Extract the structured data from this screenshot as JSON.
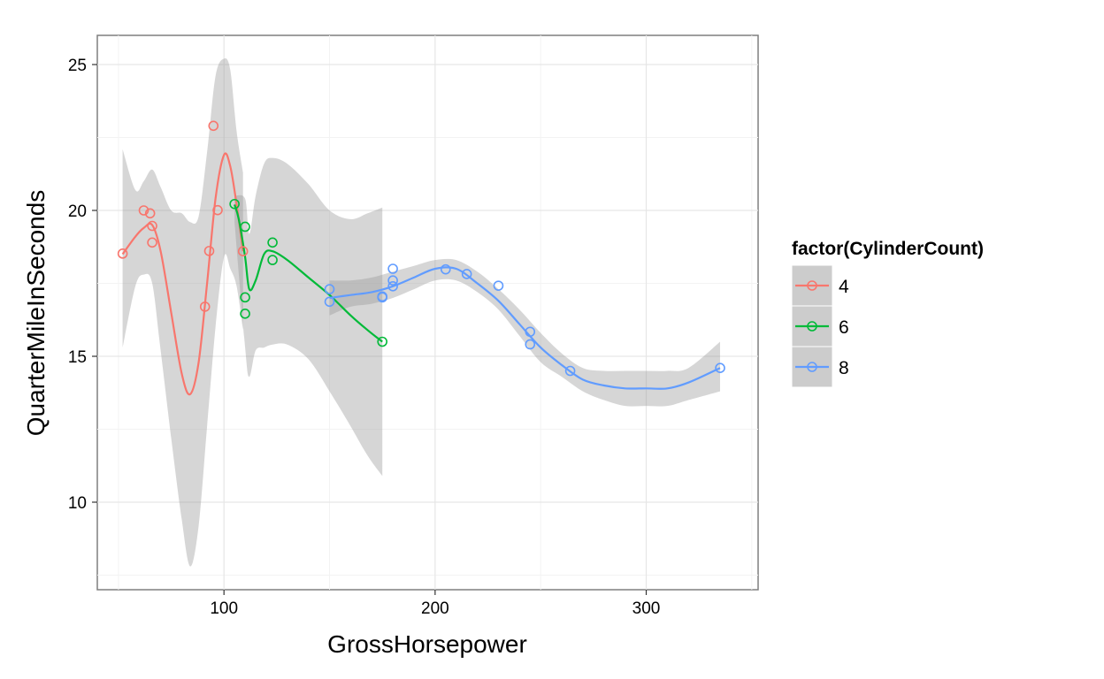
{
  "chart_data": {
    "type": "scatter",
    "xlabel": "GrossHorsepower",
    "ylabel": "QuarterMileInSeconds",
    "xlim": [
      40,
      353
    ],
    "ylim": [
      7,
      26
    ],
    "x_ticks": [
      100,
      200,
      300
    ],
    "y_ticks": [
      10,
      15,
      20,
      25
    ],
    "grid": true,
    "smoother": "loess with confidence band",
    "legend": {
      "title": "factor(CylinderCount)",
      "position": "right"
    },
    "series": [
      {
        "name": "4",
        "color": "#F8766D",
        "points": [
          [
            52,
            18.52
          ],
          [
            62,
            20.0
          ],
          [
            65,
            19.9
          ],
          [
            66,
            19.47
          ],
          [
            66,
            18.9
          ],
          [
            91,
            16.7
          ],
          [
            93,
            18.61
          ],
          [
            95,
            22.9
          ],
          [
            97,
            20.01
          ],
          [
            109,
            18.6
          ]
        ],
        "smooth": [
          [
            52,
            18.5
          ],
          [
            58,
            19.1
          ],
          [
            62,
            19.4
          ],
          [
            66,
            19.5
          ],
          [
            70,
            18.6
          ],
          [
            75,
            16.5
          ],
          [
            80,
            14.4
          ],
          [
            84,
            13.7
          ],
          [
            88,
            14.8
          ],
          [
            92,
            17.5
          ],
          [
            96,
            20.4
          ],
          [
            100,
            21.9
          ],
          [
            103,
            21.5
          ],
          [
            106,
            20.2
          ],
          [
            109,
            18.6
          ]
        ],
        "band_upper": [
          [
            52,
            22.1
          ],
          [
            58,
            20.7
          ],
          [
            62,
            21.0
          ],
          [
            66,
            21.4
          ],
          [
            70,
            20.8
          ],
          [
            75,
            20.0
          ],
          [
            80,
            19.9
          ],
          [
            84,
            19.6
          ],
          [
            88,
            19.8
          ],
          [
            92,
            22.0
          ],
          [
            96,
            24.6
          ],
          [
            100,
            25.2
          ],
          [
            103,
            24.8
          ],
          [
            106,
            22.7
          ],
          [
            109,
            21.3
          ]
        ],
        "band_lower": [
          [
            52,
            15.3
          ],
          [
            58,
            17.4
          ],
          [
            62,
            17.8
          ],
          [
            66,
            17.5
          ],
          [
            70,
            15.2
          ],
          [
            75,
            12.2
          ],
          [
            80,
            9.4
          ],
          [
            84,
            7.8
          ],
          [
            88,
            9.2
          ],
          [
            92,
            12.6
          ],
          [
            96,
            16.0
          ],
          [
            100,
            18.4
          ],
          [
            103,
            18.0
          ],
          [
            106,
            17.4
          ],
          [
            109,
            15.9
          ]
        ]
      },
      {
        "name": "6",
        "color": "#00BA38",
        "points": [
          [
            105,
            20.22
          ],
          [
            110,
            19.44
          ],
          [
            110,
            17.02
          ],
          [
            110,
            16.46
          ],
          [
            123,
            18.9
          ],
          [
            123,
            18.3
          ],
          [
            175,
            15.5
          ]
        ],
        "smooth": [
          [
            105,
            20.2
          ],
          [
            107,
            19.7
          ],
          [
            110,
            18.4
          ],
          [
            112,
            17.3
          ],
          [
            115,
            17.6
          ],
          [
            119,
            18.5
          ],
          [
            123,
            18.6
          ],
          [
            130,
            18.3
          ],
          [
            140,
            17.7
          ],
          [
            150,
            17.1
          ],
          [
            160,
            16.4
          ],
          [
            168,
            15.9
          ],
          [
            175,
            15.5
          ]
        ],
        "band_upper": [
          [
            105,
            20.5
          ],
          [
            110,
            20.4
          ],
          [
            112,
            19.2
          ],
          [
            115,
            20.5
          ],
          [
            119,
            21.6
          ],
          [
            123,
            21.8
          ],
          [
            130,
            21.6
          ],
          [
            140,
            20.9
          ],
          [
            150,
            20.0
          ],
          [
            160,
            19.7
          ],
          [
            168,
            19.9
          ],
          [
            175,
            20.1
          ]
        ],
        "band_lower": [
          [
            105,
            19.6
          ],
          [
            110,
            15.3
          ],
          [
            112,
            14.3
          ],
          [
            115,
            15.2
          ],
          [
            119,
            15.3
          ],
          [
            123,
            15.4
          ],
          [
            130,
            15.4
          ],
          [
            140,
            14.9
          ],
          [
            150,
            13.8
          ],
          [
            160,
            12.6
          ],
          [
            168,
            11.6
          ],
          [
            175,
            10.9
          ]
        ]
      },
      {
        "name": "8",
        "color": "#619CFF",
        "points": [
          [
            150,
            17.3
          ],
          [
            150,
            16.87
          ],
          [
            175,
            17.02
          ],
          [
            175,
            17.05
          ],
          [
            180,
            17.4
          ],
          [
            180,
            17.6
          ],
          [
            180,
            18.0
          ],
          [
            205,
            17.98
          ],
          [
            215,
            17.82
          ],
          [
            230,
            17.42
          ],
          [
            245,
            15.84
          ],
          [
            245,
            15.41
          ],
          [
            264,
            14.5
          ],
          [
            335,
            14.6
          ]
        ],
        "smooth": [
          [
            150,
            17.0
          ],
          [
            160,
            17.1
          ],
          [
            170,
            17.2
          ],
          [
            180,
            17.4
          ],
          [
            190,
            17.7
          ],
          [
            200,
            18.0
          ],
          [
            210,
            18.0
          ],
          [
            220,
            17.5
          ],
          [
            230,
            16.9
          ],
          [
            240,
            16.1
          ],
          [
            250,
            15.3
          ],
          [
            260,
            14.7
          ],
          [
            270,
            14.2
          ],
          [
            280,
            14.0
          ],
          [
            290,
            13.9
          ],
          [
            300,
            13.9
          ],
          [
            310,
            13.9
          ],
          [
            320,
            14.1
          ],
          [
            335,
            14.6
          ]
        ],
        "band_upper": [
          [
            150,
            17.6
          ],
          [
            160,
            17.6
          ],
          [
            170,
            17.7
          ],
          [
            180,
            17.9
          ],
          [
            190,
            18.1
          ],
          [
            200,
            18.3
          ],
          [
            210,
            18.3
          ],
          [
            220,
            17.9
          ],
          [
            230,
            17.3
          ],
          [
            240,
            16.6
          ],
          [
            250,
            15.8
          ],
          [
            260,
            15.1
          ],
          [
            270,
            14.6
          ],
          [
            280,
            14.5
          ],
          [
            290,
            14.5
          ],
          [
            300,
            14.5
          ],
          [
            310,
            14.5
          ],
          [
            320,
            14.6
          ],
          [
            335,
            15.5
          ]
        ],
        "band_lower": [
          [
            150,
            16.4
          ],
          [
            160,
            16.7
          ],
          [
            170,
            16.8
          ],
          [
            180,
            17.0
          ],
          [
            190,
            17.3
          ],
          [
            200,
            17.6
          ],
          [
            210,
            17.6
          ],
          [
            220,
            17.2
          ],
          [
            230,
            16.6
          ],
          [
            240,
            15.7
          ],
          [
            250,
            14.8
          ],
          [
            260,
            14.3
          ],
          [
            270,
            13.8
          ],
          [
            280,
            13.5
          ],
          [
            290,
            13.3
          ],
          [
            300,
            13.3
          ],
          [
            310,
            13.3
          ],
          [
            320,
            13.5
          ],
          [
            335,
            13.8
          ]
        ]
      }
    ]
  }
}
